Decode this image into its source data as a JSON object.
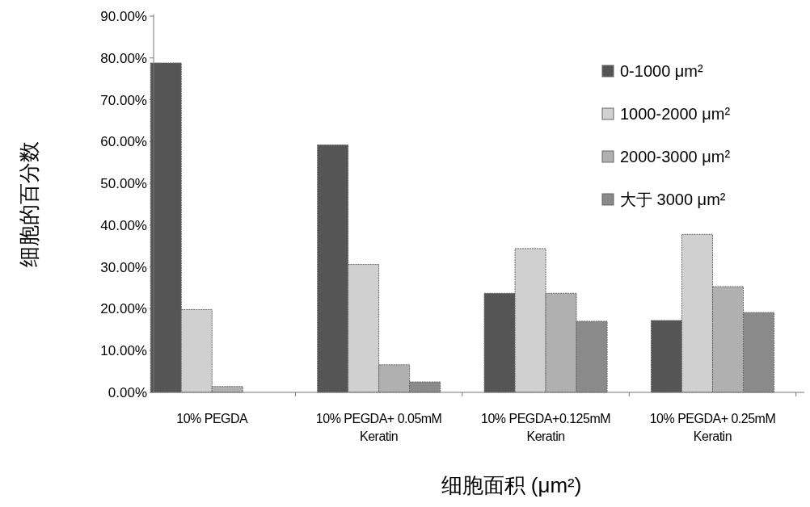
{
  "chart_data": {
    "type": "bar",
    "xlabel": "细胞面积 (μm²)",
    "ylabel": "细胞的百分数",
    "categories": [
      "10% PEGDA",
      "10% PEGDA+ 0.05mM\nKeratin",
      "10% PEGDA+0.125mM\nKeratin",
      "10% PEGDA+ 0.25mM\nKeratin"
    ],
    "series": [
      {
        "name": "0-1000 μm²",
        "color": "#555555",
        "values": [
          78.8,
          59.2,
          23.7,
          17.2
        ]
      },
      {
        "name": "1000-2000 μm²",
        "color": "#d0d0d0",
        "values": [
          19.8,
          30.6,
          34.4,
          37.8
        ]
      },
      {
        "name": "2000-3000 μm²",
        "color": "#b0b0b0",
        "values": [
          1.4,
          6.6,
          23.7,
          25.3
        ]
      },
      {
        "name": "大于 3000 μm²",
        "color": "#8a8a8a",
        "values": [
          0,
          2.5,
          17.0,
          19.1
        ]
      }
    ],
    "ylim": [
      0,
      90
    ],
    "yticks": [
      {
        "value": 0,
        "label": "0.00%"
      },
      {
        "value": 10,
        "label": "10.00%"
      },
      {
        "value": 20,
        "label": "20.00%"
      },
      {
        "value": 30,
        "label": "30.00%"
      },
      {
        "value": 40,
        "label": "40.00%"
      },
      {
        "value": 50,
        "label": "50.00%"
      },
      {
        "value": 60,
        "label": "60.00%"
      },
      {
        "value": 70,
        "label": "70.00%"
      },
      {
        "value": 80,
        "label": "80.00%"
      },
      {
        "value": 90,
        "label": "90.00%"
      }
    ],
    "grid": false,
    "legend": "top right"
  }
}
